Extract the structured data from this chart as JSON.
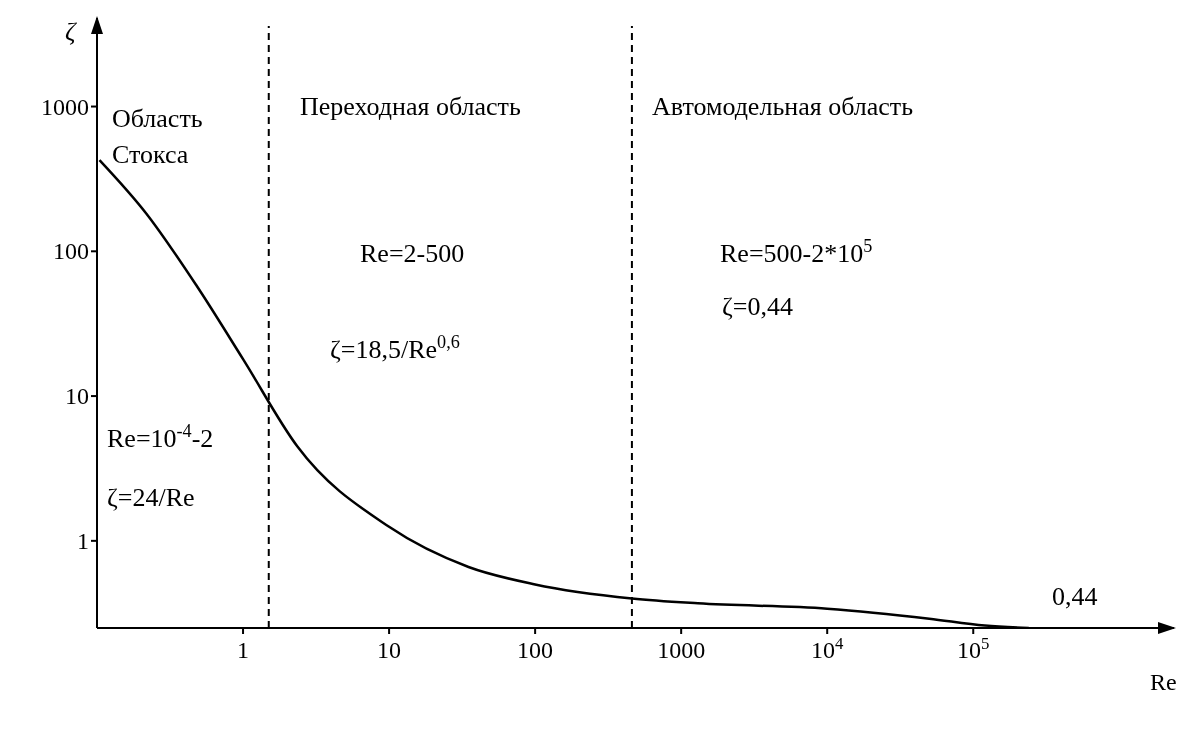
{
  "chart_data": {
    "type": "line",
    "xlabel": "Re",
    "ylabel": "ζ",
    "log": "xy",
    "x": [
      0.104,
      0.218,
      0.48,
      1,
      2.35,
      10,
      35,
      100,
      460,
      1300,
      10000,
      50000,
      120000,
      240000
    ],
    "series": [
      {
        "color": "#000000",
        "values": [
          427,
          182,
          58,
          18,
          4.5,
          1.25,
          0.66,
          0.5,
          0.4,
          0.37,
          0.34,
          0.29,
          0.26,
          0.25
        ]
      }
    ],
    "xlim": [
      0.1,
      1900000
    ],
    "ylim": [
      0.25,
      3600
    ],
    "xticks": [
      1,
      10,
      100,
      1000,
      {
        "value": 10000,
        "label": "10$^{4}$"
      },
      {
        "value": 100000,
        "label": "10$^{5}$"
      }
    ],
    "yticks": [
      1,
      10,
      100,
      1000
    ],
    "ref_lines": [
      {
        "axis": "x",
        "value": 1.5,
        "line_style": "dashed",
        "color": "#000000"
      },
      {
        "axis": "x",
        "value": 460,
        "line_style": "dashed",
        "color": "#000000"
      }
    ],
    "annotations": [
      "Область\nСтокса",
      "Переходная область",
      "Автомодельная область",
      "Re=2-500",
      "ζ=18,5/Re$^{0,6}$",
      "Re=500-2*10$^{5}$",
      "ζ=0,44",
      "Re=10$^{-4}$-2",
      "ζ=24/Re",
      "0,44"
    ],
    "grid": false,
    "legend": false,
    "marker": "none",
    "line_style": "solid"
  }
}
